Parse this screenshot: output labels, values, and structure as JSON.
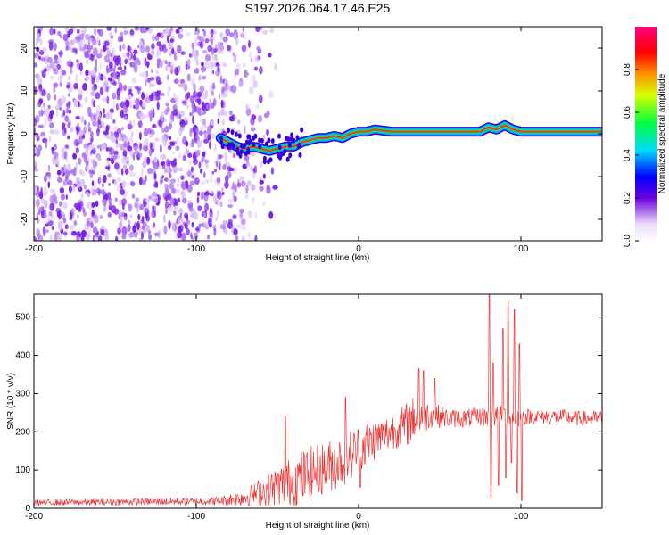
{
  "title": "S197.2026.064.17.46.E25",
  "chart_data": [
    {
      "type": "heatmap",
      "title": "S197.2026.064.17.46.E25",
      "xlabel": "Height of straight line (km)",
      "ylabel": "Frequency (Hz)",
      "xlim": [
        -200,
        150
      ],
      "ylim": [
        -25,
        25
      ],
      "x_ticks": [
        -200,
        -100,
        0,
        100
      ],
      "y_ticks": [
        -20,
        -10,
        0,
        10,
        20
      ],
      "trace": {
        "x": [
          -85,
          -80,
          -75,
          -70,
          -65,
          -60,
          -55,
          -50,
          -45,
          -40,
          -35,
          -30,
          -25,
          -20,
          -15,
          -10,
          -5,
          0,
          5,
          10,
          20,
          30,
          40,
          50,
          60,
          70,
          75,
          80,
          85,
          90,
          95,
          100,
          110,
          120,
          130,
          140,
          150
        ],
        "freq": [
          -1,
          -2,
          -3,
          -3.5,
          -3,
          -3.5,
          -4,
          -3.5,
          -3,
          -3,
          -2,
          -1.5,
          -1,
          -1,
          -0.5,
          -1,
          0,
          0.5,
          0.5,
          1,
          0.5,
          0.5,
          0.5,
          0.5,
          0.5,
          0.5,
          0.5,
          1.5,
          1,
          2,
          1,
          0.5,
          0.5,
          0.5,
          0.5,
          0.5,
          0.5
        ]
      },
      "noise_region_x": [
        -200,
        -60
      ],
      "colorbar": {
        "label": "Normalized spectral amplitude",
        "range": [
          0.0,
          1.0
        ],
        "ticks": [
          "0.0",
          "0.2",
          "0.4",
          "0.6",
          "0.8"
        ]
      }
    },
    {
      "type": "line",
      "xlabel": "Height of straight line (km)",
      "ylabel": "SNR (10 * v/v)",
      "xlim": [
        -200,
        150
      ],
      "ylim": [
        0,
        560
      ],
      "x_ticks": [
        -200,
        -100,
        0,
        100
      ],
      "y_ticks": [
        0,
        100,
        200,
        300,
        400,
        500
      ],
      "color": "#ee3333",
      "envelope": {
        "x": [
          -200,
          -100,
          -85,
          -75,
          -65,
          -55,
          -45,
          -35,
          -25,
          -15,
          -5,
          5,
          15,
          25,
          30,
          35,
          45,
          55,
          65,
          75,
          80,
          83,
          88,
          93,
          98,
          100,
          105,
          115,
          125,
          135,
          150
        ],
        "base": [
          15,
          18,
          20,
          25,
          35,
          50,
          65,
          80,
          100,
          115,
          140,
          170,
          190,
          210,
          220,
          240,
          245,
          235,
          235,
          240,
          240,
          240,
          240,
          240,
          240,
          240,
          240,
          240,
          240,
          235,
          235
        ],
        "amplitude": [
          8,
          10,
          12,
          20,
          30,
          45,
          60,
          75,
          70,
          70,
          70,
          60,
          50,
          50,
          60,
          60,
          35,
          25,
          25,
          25,
          30,
          30,
          30,
          30,
          30,
          25,
          20,
          20,
          20,
          20,
          20
        ]
      },
      "peaks": [
        {
          "x": 80.5,
          "y": 560
        },
        {
          "x": 81.5,
          "y": 30
        },
        {
          "x": 83,
          "y": 380
        },
        {
          "x": 86,
          "y": 60
        },
        {
          "x": 89,
          "y": 470
        },
        {
          "x": 90.5,
          "y": 80
        },
        {
          "x": 92,
          "y": 540
        },
        {
          "x": 94,
          "y": 120
        },
        {
          "x": 96,
          "y": 520
        },
        {
          "x": 97.5,
          "y": 40
        },
        {
          "x": 99,
          "y": 430
        },
        {
          "x": 100.5,
          "y": 20
        },
        {
          "x": 37,
          "y": 365
        },
        {
          "x": 40,
          "y": 360
        },
        {
          "x": 47,
          "y": 340
        },
        {
          "x": -8,
          "y": 290
        },
        {
          "x": -45,
          "y": 240
        },
        {
          "x": 1,
          "y": 55
        }
      ]
    }
  ]
}
